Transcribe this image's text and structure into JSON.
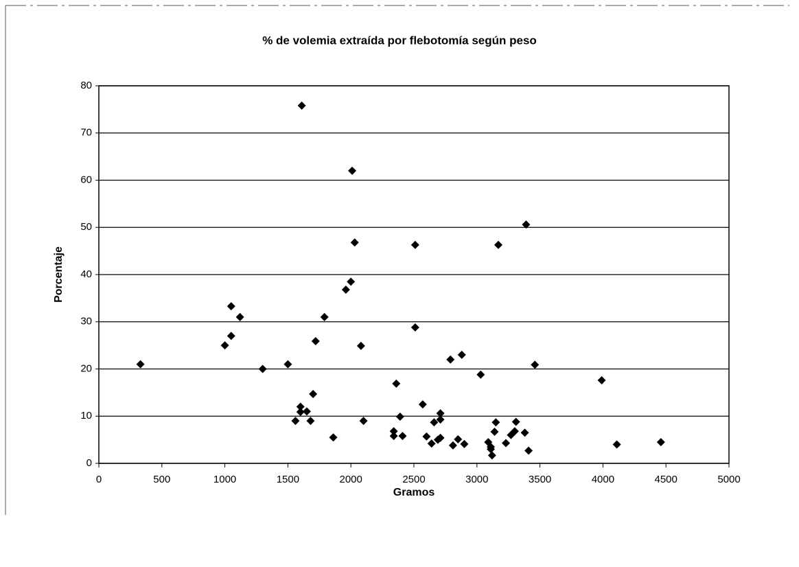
{
  "chart_data": {
    "type": "scatter",
    "title": "% de volemia extraída por flebotomía según peso",
    "x_label": "Gramos",
    "y_label": "Porcentaje",
    "xlim": [
      0,
      5000
    ],
    "xticks": [
      0,
      500,
      1000,
      1500,
      2000,
      2500,
      3000,
      3500,
      4000,
      4500,
      5000
    ],
    "ylim": [
      0,
      80
    ],
    "yticks": [
      0,
      10,
      20,
      30,
      40,
      50,
      60,
      70,
      80
    ],
    "grid": true,
    "color": "#000000",
    "series": [
      {
        "name": "Porcentaje",
        "x": [
          330,
          1000,
          1050,
          1050,
          1120,
          1300,
          1500,
          1610,
          1560,
          1600,
          1600,
          1650,
          1680,
          1700,
          1720,
          1790,
          1860,
          1960,
          2000,
          2010,
          2030,
          2080,
          2100,
          2340,
          2340,
          2360,
          2390,
          2410,
          2510,
          2510,
          2570,
          2600,
          2640,
          2660,
          2690,
          2710,
          2710,
          2710,
          2810,
          2850,
          2790,
          2880,
          2900,
          3030,
          3090,
          3110,
          3110,
          3120,
          3150,
          3140,
          3170,
          3230,
          3270,
          3300,
          3310,
          3380,
          3390,
          3410,
          3460,
          3990,
          4110,
          4460
        ],
        "values": [
          21,
          25,
          27,
          33.3,
          31,
          20,
          21,
          75.8,
          9,
          12,
          10.9,
          11,
          9,
          14.7,
          25.9,
          31,
          5.5,
          36.8,
          38.5,
          62,
          46.8,
          24.9,
          9,
          6.8,
          5.8,
          16.9,
          9.9,
          5.8,
          46.3,
          28.8,
          12.5,
          5.7,
          4.2,
          8.7,
          5,
          5.4,
          10.6,
          9.3,
          3.8,
          5.1,
          22,
          23,
          4.1,
          18.8,
          4.5,
          3.5,
          3,
          1.7,
          8.7,
          6.7,
          46.3,
          4.3,
          6,
          6.8,
          8.8,
          6.5,
          50.6,
          2.7,
          20.9,
          17.6,
          4,
          4.5
        ]
      }
    ]
  }
}
